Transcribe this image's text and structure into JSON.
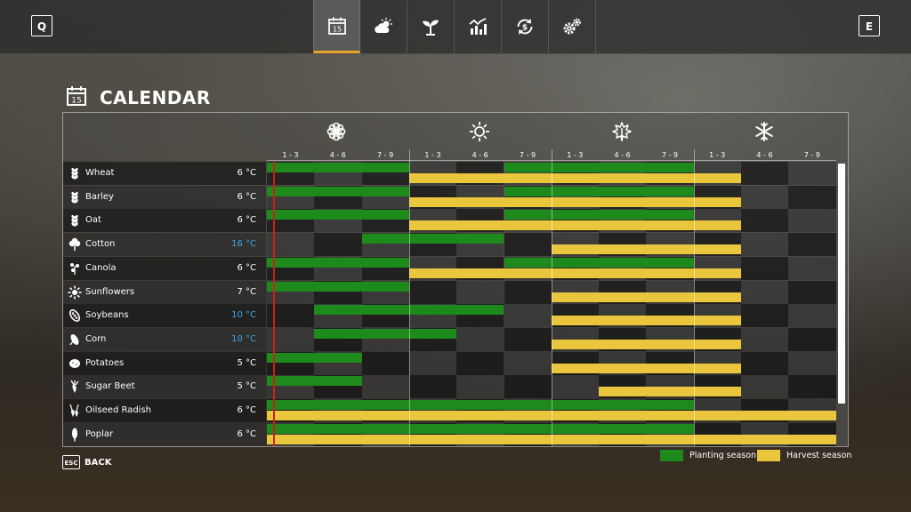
{
  "topbar": {
    "left_key": "Q",
    "right_key": "E",
    "tabs": [
      {
        "icon": "calendar-icon",
        "day": "15",
        "active": true
      },
      {
        "icon": "weather-icon"
      },
      {
        "icon": "crop-sprout-icon"
      },
      {
        "icon": "prices-chart-icon"
      },
      {
        "icon": "finance-cycle-icon"
      },
      {
        "icon": "settings-gears-icon"
      }
    ]
  },
  "title": {
    "text": "CALENDAR",
    "icon_day": "15"
  },
  "seasons": [
    {
      "name": "spring",
      "icon": "flower-icon"
    },
    {
      "name": "summer",
      "icon": "sun-icon"
    },
    {
      "name": "autumn",
      "icon": "leaf-icon"
    },
    {
      "name": "winter",
      "icon": "snowflake-icon"
    }
  ],
  "months": [
    "1 - 3",
    "4 - 6",
    "7 - 9",
    "1 - 3",
    "4 - 6",
    "7 - 9",
    "1 - 3",
    "4 - 6",
    "7 - 9",
    "1 - 3",
    "4 - 6",
    "7 - 9"
  ],
  "current_period_fraction": 0.15,
  "crops": [
    {
      "name": "Wheat",
      "icon": "wheat-icon",
      "temp": "6 °C",
      "warm": false,
      "planting": [
        [
          0,
          3
        ],
        [
          5,
          9
        ]
      ],
      "harvest": [
        [
          3,
          10
        ]
      ]
    },
    {
      "name": "Barley",
      "icon": "barley-icon",
      "temp": "6 °C",
      "warm": false,
      "planting": [
        [
          0,
          3
        ],
        [
          5,
          9
        ]
      ],
      "harvest": [
        [
          3,
          10
        ]
      ]
    },
    {
      "name": "Oat",
      "icon": "oat-icon",
      "temp": "6 °C",
      "warm": false,
      "planting": [
        [
          0,
          3
        ],
        [
          5,
          9
        ]
      ],
      "harvest": [
        [
          3,
          10
        ]
      ]
    },
    {
      "name": "Cotton",
      "icon": "cotton-icon",
      "temp": "16 °C",
      "warm": true,
      "planting": [
        [
          2,
          5
        ]
      ],
      "harvest": [
        [
          6,
          10
        ]
      ]
    },
    {
      "name": "Canola",
      "icon": "canola-icon",
      "temp": "6 °C",
      "warm": false,
      "planting": [
        [
          0,
          3
        ],
        [
          5,
          9
        ]
      ],
      "harvest": [
        [
          3,
          10
        ]
      ]
    },
    {
      "name": "Sunflowers",
      "icon": "sunflower-icon",
      "temp": "7 °C",
      "warm": false,
      "planting": [
        [
          0,
          3
        ]
      ],
      "harvest": [
        [
          6,
          10
        ]
      ]
    },
    {
      "name": "Soybeans",
      "icon": "soybean-icon",
      "temp": "10 °C",
      "warm": true,
      "planting": [
        [
          1,
          5
        ]
      ],
      "harvest": [
        [
          6,
          10
        ]
      ]
    },
    {
      "name": "Corn",
      "icon": "corn-icon",
      "temp": "10 °C",
      "warm": true,
      "planting": [
        [
          1,
          4
        ]
      ],
      "harvest": [
        [
          6,
          10
        ]
      ]
    },
    {
      "name": "Potatoes",
      "icon": "potato-icon",
      "temp": "5 °C",
      "warm": false,
      "planting": [
        [
          0,
          2
        ]
      ],
      "harvest": [
        [
          6,
          10
        ]
      ]
    },
    {
      "name": "Sugar Beet",
      "icon": "sugar-beet-icon",
      "temp": "5 °C",
      "warm": false,
      "planting": [
        [
          0,
          2
        ]
      ],
      "harvest": [
        [
          7,
          10
        ]
      ]
    },
    {
      "name": "Oilseed Radish",
      "icon": "radish-icon",
      "temp": "6 °C",
      "warm": false,
      "planting": [
        [
          0,
          9
        ]
      ],
      "harvest": [
        [
          0,
          12
        ]
      ]
    },
    {
      "name": "Poplar",
      "icon": "poplar-icon",
      "temp": "6 °C",
      "warm": false,
      "planting": [
        [
          0,
          9
        ]
      ],
      "harvest": [
        [
          0,
          12
        ]
      ]
    }
  ],
  "footer": {
    "back_key": "ESC",
    "back_label": "BACK",
    "legend": [
      {
        "label": "Planting season",
        "color": "#1f8a1c"
      },
      {
        "label": "Harvest season",
        "color": "#eac63d"
      }
    ]
  },
  "colors": {
    "accent": "#e8a628",
    "today_line": "#c8221a",
    "warm_temp": "#3fa3e6"
  }
}
